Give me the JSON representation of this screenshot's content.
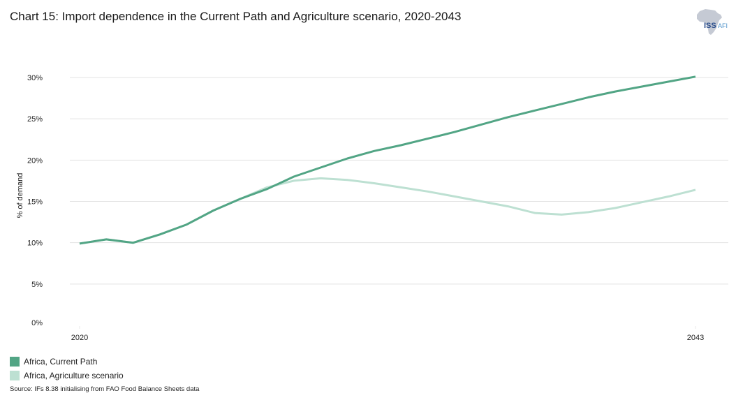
{
  "header": {
    "title": "Chart 15: Import dependence in the Current Path and Agriculture scenario, 2020-2043",
    "logo": {
      "icon": "africa-map-icon",
      "text": "ISS",
      "subtext": "AFI"
    }
  },
  "footer": {
    "source": "Source: IFs 8.38 initialising from FAO Food Balance Sheets data"
  },
  "chart_data": {
    "type": "line",
    "title": "Chart 15: Import dependence in the Current Path and Agriculture scenario, 2020-2043",
    "xlabel": "",
    "ylabel": "% of demand",
    "x": [
      2020,
      2021,
      2022,
      2023,
      2024,
      2025,
      2026,
      2027,
      2028,
      2029,
      2030,
      2031,
      2032,
      2033,
      2034,
      2035,
      2036,
      2037,
      2038,
      2039,
      2040,
      2041,
      2042,
      2043
    ],
    "x_tick_labels": [
      "2020",
      "2043"
    ],
    "y_ticks": [
      0,
      5,
      10,
      15,
      20,
      25,
      30
    ],
    "y_tick_labels": [
      "0%",
      "5%",
      "10%",
      "15%",
      "20%",
      "25%",
      "30%"
    ],
    "ylim": [
      0,
      30
    ],
    "grid": true,
    "legend_position": "bottom-left",
    "series": [
      {
        "name": "Africa, Current Path",
        "color": "#52a585",
        "values": [
          9.9,
          10.4,
          10.0,
          11.0,
          12.2,
          13.9,
          15.3,
          16.5,
          18.0,
          19.1,
          20.2,
          21.1,
          21.8,
          22.6,
          23.4,
          24.3,
          25.2,
          26.0,
          26.8,
          27.6,
          28.3,
          28.9,
          29.5,
          30.1
        ]
      },
      {
        "name": "Africa, Agriculture scenario",
        "color": "#bde0d2",
        "values": [
          9.9,
          10.4,
          10.0,
          11.0,
          12.2,
          13.9,
          15.3,
          16.7,
          17.5,
          17.8,
          17.6,
          17.2,
          16.7,
          16.2,
          15.6,
          15.0,
          14.4,
          13.6,
          13.4,
          13.7,
          14.2,
          14.9,
          15.6,
          16.4
        ]
      }
    ]
  }
}
